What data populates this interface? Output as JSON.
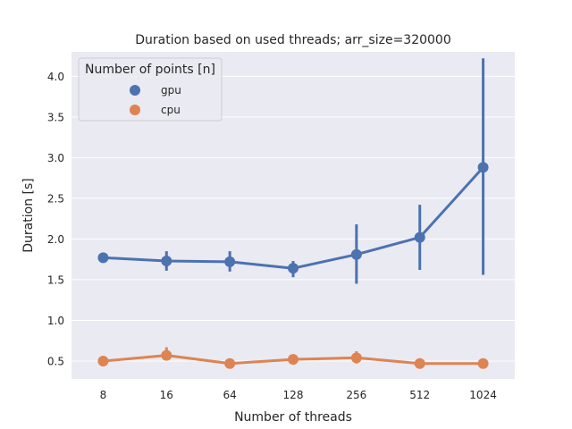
{
  "chart_data": {
    "type": "line",
    "title": "Duration based on used threads; arr_size=320000",
    "xlabel": "Number of threads",
    "ylabel": "Duration [s]",
    "categories": [
      "8",
      "16",
      "64",
      "128",
      "256",
      "512",
      "1024"
    ],
    "ylim": [
      0.28,
      4.3
    ],
    "yticks": [
      0.5,
      1.0,
      1.5,
      2.0,
      2.5,
      3.0,
      3.5,
      4.0
    ],
    "ytick_labels": [
      "0.5",
      "1.0",
      "1.5",
      "2.0",
      "2.5",
      "3.0",
      "3.5",
      "4.0"
    ],
    "grid": true,
    "legend": {
      "title": "Number of points [n]",
      "placement": "top-left"
    },
    "series": [
      {
        "name": "gpu",
        "color": "#4c72b0",
        "values": [
          1.77,
          1.73,
          1.72,
          1.64,
          1.81,
          2.02,
          2.88
        ],
        "ci_low": [
          1.77,
          1.61,
          1.6,
          1.53,
          1.45,
          1.62,
          1.56
        ],
        "ci_high": [
          1.77,
          1.85,
          1.85,
          1.73,
          2.18,
          2.42,
          4.22
        ]
      },
      {
        "name": "cpu",
        "color": "#dd8452",
        "values": [
          0.5,
          0.57,
          0.47,
          0.52,
          0.54,
          0.47,
          0.47
        ],
        "ci_low": [
          0.5,
          0.51,
          0.47,
          0.5,
          0.47,
          0.47,
          0.47
        ],
        "ci_high": [
          0.5,
          0.67,
          0.47,
          0.54,
          0.62,
          0.47,
          0.47
        ]
      }
    ]
  }
}
